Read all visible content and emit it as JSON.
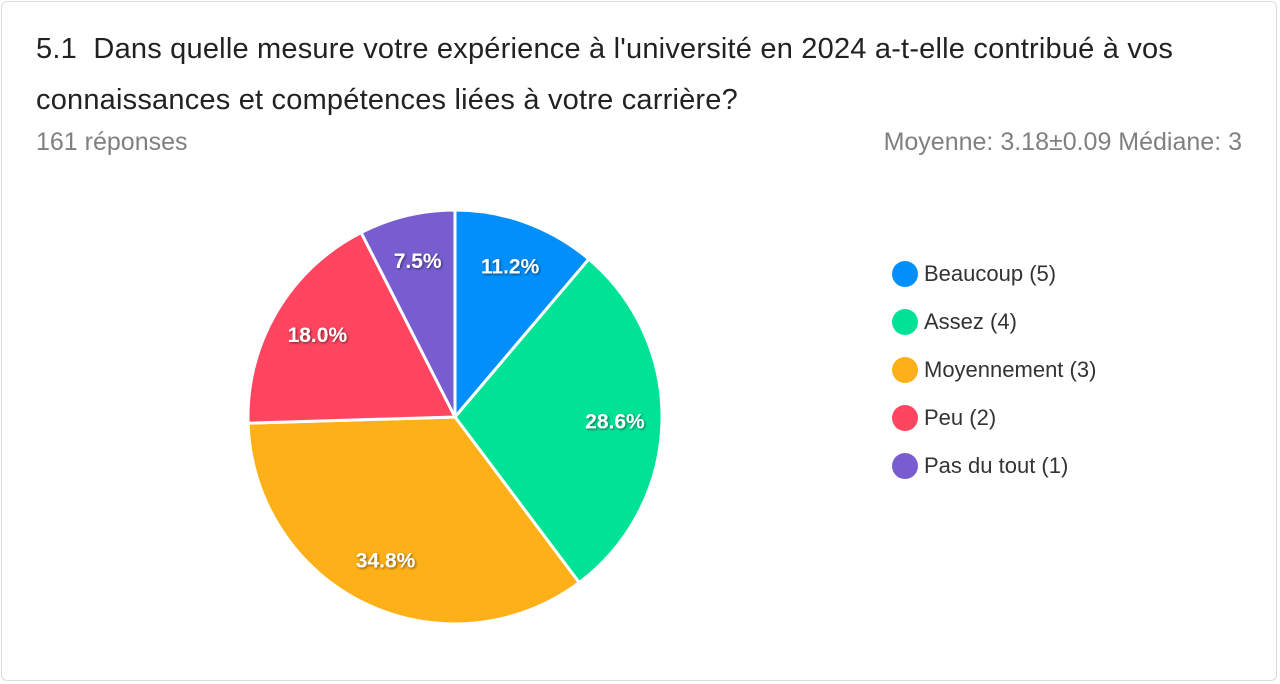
{
  "header": {
    "title": "5.1  Dans quelle mesure votre expérience à l'université en 2024 a-t-elle contribué à vos connaissances et compétences liées à votre carrière?",
    "responses": "161 réponses",
    "stats": "Moyenne: 3.18±0.09 Médiane: 3"
  },
  "chart_data": {
    "type": "pie",
    "categories": [
      "Beaucoup (5)",
      "Assez (4)",
      "Moyennement (3)",
      "Peu (2)",
      "Pas du tout (1)"
    ],
    "values": [
      11.2,
      28.6,
      34.8,
      18.0,
      7.5
    ],
    "labels": [
      "11.2%",
      "28.6%",
      "34.8%",
      "18.0%",
      "7.5%"
    ],
    "colors": [
      "#008ffb",
      "#00e396",
      "#feb019",
      "#ff4560",
      "#775dd0"
    ],
    "legend": "right",
    "title": ""
  }
}
